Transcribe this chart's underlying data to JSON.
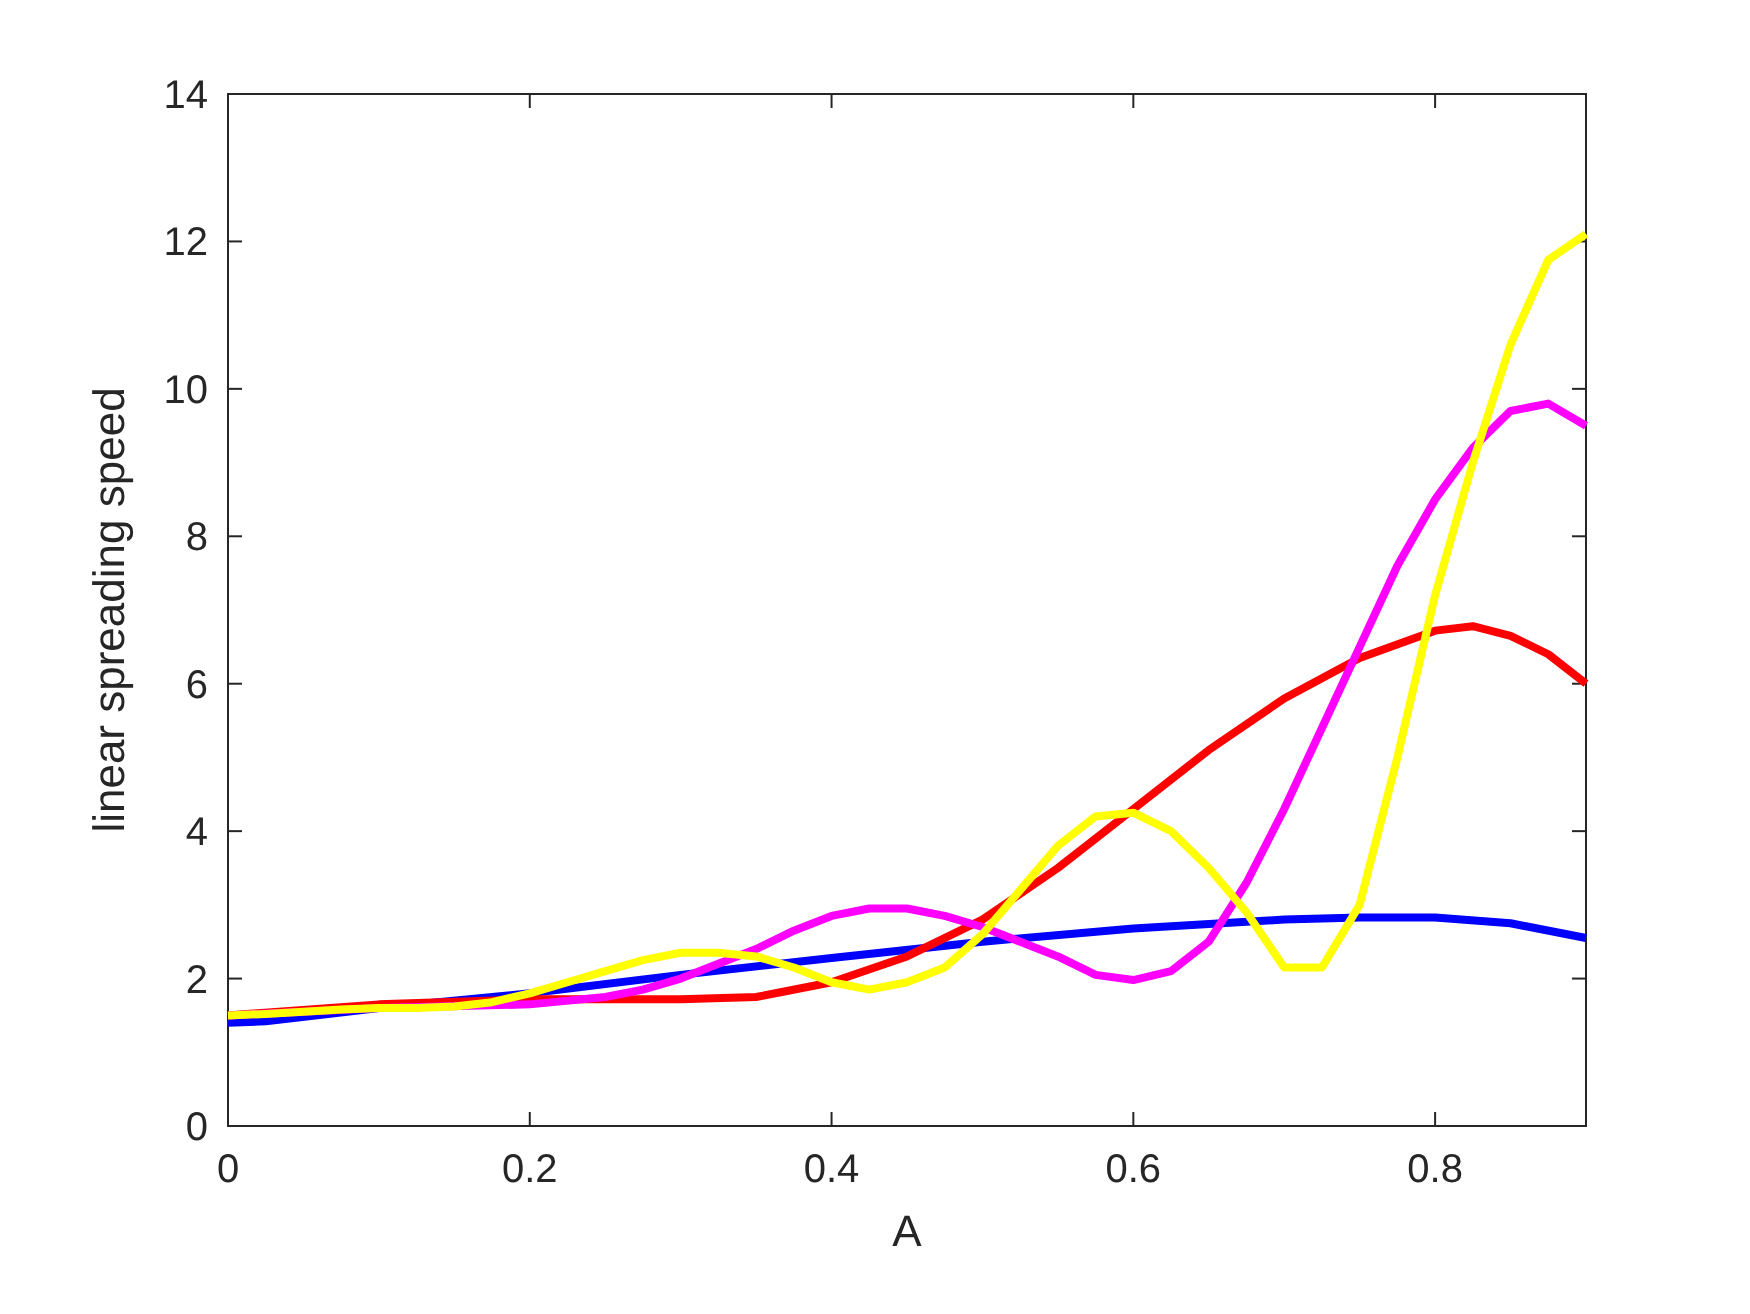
{
  "chart_data": {
    "type": "line",
    "xlabel": "A",
    "ylabel": "linear spreading speed",
    "xlim": [
      0,
      0.9
    ],
    "ylim": [
      0,
      14
    ],
    "xticks": [
      0,
      0.2,
      0.4,
      0.6,
      0.8
    ],
    "yticks": [
      0,
      2,
      4,
      6,
      8,
      10,
      12,
      14
    ],
    "grid": false,
    "line_style": "solid",
    "marker": "none",
    "series": [
      {
        "color": "#0000ff",
        "x": [
          0,
          0.025,
          0.1,
          0.2,
          0.3,
          0.4,
          0.5,
          0.6,
          0.7,
          0.75,
          0.8,
          0.85,
          0.9
        ],
        "values": [
          1.4,
          1.42,
          1.6,
          1.8,
          2.05,
          2.28,
          2.5,
          2.68,
          2.8,
          2.83,
          2.83,
          2.75,
          2.55
        ]
      },
      {
        "color": "#ff0000",
        "x": [
          0,
          0.1,
          0.2,
          0.3,
          0.35,
          0.4,
          0.45,
          0.5,
          0.55,
          0.6,
          0.65,
          0.7,
          0.75,
          0.8,
          0.825,
          0.85,
          0.875,
          0.9
        ],
        "values": [
          1.5,
          1.65,
          1.72,
          1.72,
          1.75,
          1.95,
          2.3,
          2.8,
          3.5,
          4.3,
          5.1,
          5.8,
          6.35,
          6.72,
          6.78,
          6.65,
          6.4,
          6.0
        ]
      },
      {
        "color": "#ff00ff",
        "x": [
          0,
          0.1,
          0.2,
          0.25,
          0.275,
          0.3,
          0.325,
          0.35,
          0.375,
          0.4,
          0.425,
          0.45,
          0.475,
          0.5,
          0.525,
          0.55,
          0.575,
          0.6,
          0.625,
          0.65,
          0.675,
          0.7,
          0.725,
          0.75,
          0.775,
          0.8,
          0.825,
          0.85,
          0.875,
          0.9
        ],
        "values": [
          1.5,
          1.6,
          1.65,
          1.75,
          1.85,
          2.0,
          2.2,
          2.4,
          2.65,
          2.85,
          2.95,
          2.95,
          2.85,
          2.7,
          2.5,
          2.3,
          2.05,
          1.98,
          2.1,
          2.5,
          3.3,
          4.3,
          5.4,
          6.5,
          7.6,
          8.5,
          9.2,
          9.7,
          9.8,
          9.5
        ]
      },
      {
        "color": "#ffff00",
        "x": [
          0,
          0.025,
          0.05,
          0.075,
          0.1,
          0.125,
          0.15,
          0.175,
          0.2,
          0.225,
          0.25,
          0.275,
          0.3,
          0.325,
          0.35,
          0.375,
          0.4,
          0.425,
          0.45,
          0.475,
          0.5,
          0.525,
          0.55,
          0.575,
          0.6,
          0.625,
          0.65,
          0.675,
          0.7,
          0.725,
          0.75,
          0.775,
          0.8,
          0.825,
          0.85,
          0.875,
          0.9
        ],
        "values": [
          1.5,
          1.52,
          1.55,
          1.58,
          1.6,
          1.6,
          1.62,
          1.68,
          1.8,
          1.95,
          2.1,
          2.25,
          2.35,
          2.35,
          2.3,
          2.15,
          1.95,
          1.85,
          1.95,
          2.15,
          2.6,
          3.2,
          3.8,
          4.2,
          4.25,
          4.0,
          3.5,
          2.9,
          2.15,
          2.15,
          3.0,
          5.0,
          7.2,
          9.0,
          10.6,
          11.75,
          12.1
        ]
      }
    ]
  }
}
